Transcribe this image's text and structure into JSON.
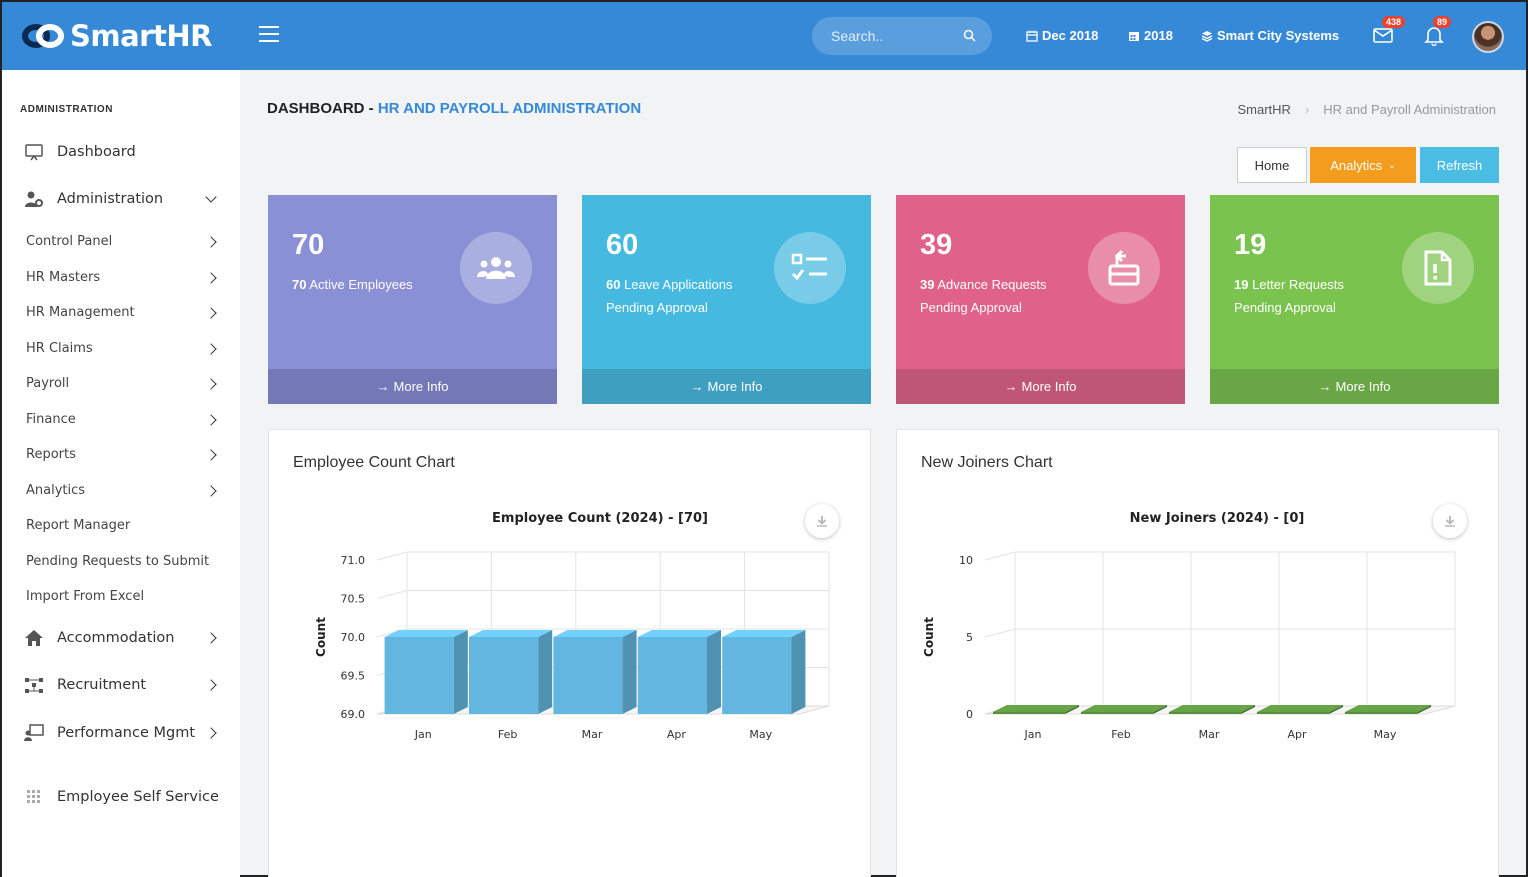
{
  "app": {
    "logo": "SmartHR"
  },
  "header": {
    "search_placeholder": "Search..",
    "month": "Dec 2018",
    "year": "2018",
    "company": "Smart City Systems",
    "mail_count": "438",
    "notif_count": "89"
  },
  "sidebar": {
    "section": "ADMINISTRATION",
    "main_items": [
      {
        "label": "Dashboard",
        "icon": "monitor-icon"
      },
      {
        "label": "Administration",
        "icon": "user-gear-icon"
      }
    ],
    "sub_items": [
      {
        "label": "Control Panel"
      },
      {
        "label": "HR Masters"
      },
      {
        "label": "HR Management"
      },
      {
        "label": "HR Claims"
      },
      {
        "label": "Payroll"
      },
      {
        "label": "Finance"
      },
      {
        "label": "Reports"
      },
      {
        "label": "Analytics"
      },
      {
        "label": "Report Manager"
      },
      {
        "label": "Pending Requests to Submit"
      },
      {
        "label": "Import From Excel"
      }
    ],
    "lower_items": [
      {
        "label": "Accommodation",
        "icon": "home-icon"
      },
      {
        "label": "Recruitment",
        "icon": "network-icon"
      },
      {
        "label": "Performance Mgmt",
        "icon": "presentation-icon"
      },
      {
        "label": "Employee Self Service",
        "icon": "grid-icon"
      }
    ]
  },
  "page": {
    "title_prefix": "DASHBOARD - ",
    "title_accent": "HR AND PAYROLL ADMINISTRATION",
    "breadcrumb": [
      "SmartHR",
      "HR and Payroll Administration"
    ],
    "buttons": {
      "home": "Home",
      "analytics": "Analytics",
      "refresh": "Refresh"
    }
  },
  "cards": [
    {
      "value": "70",
      "bold": "70",
      "text": " Active Employees",
      "line2": "",
      "color": "#8a90d6",
      "foot_color": "#7379b6",
      "icon": "users-icon",
      "more": "More Info"
    },
    {
      "value": "60",
      "bold": "60",
      "text": " Leave Applications",
      "line2": "Pending Approval",
      "color": "#45b9e0",
      "foot_color": "#3e9fc0",
      "icon": "checklist-icon",
      "more": "More Info"
    },
    {
      "value": "39",
      "bold": "39",
      "text": " Advance Requests",
      "line2": "Pending Approval",
      "color": "#e0628a",
      "foot_color": "#bf5678",
      "icon": "wallet-icon",
      "more": "More Info"
    },
    {
      "value": "19",
      "bold": "19",
      "text": " Letter Requests",
      "line2": "Pending Approval",
      "color": "#7bc34f",
      "foot_color": "#69a646",
      "icon": "file-alert-icon",
      "more": "More Info"
    }
  ],
  "panels": {
    "left": {
      "title": "Employee Count Chart"
    },
    "right": {
      "title": "New Joiners Chart"
    }
  },
  "chart_data": [
    {
      "type": "bar",
      "title": "Employee Count (2024) - [70]",
      "xlabel": "",
      "ylabel": "Count",
      "categories": [
        "Jan",
        "Feb",
        "Mar",
        "Apr",
        "May"
      ],
      "values": [
        70,
        70,
        70,
        70,
        70
      ],
      "ylim": [
        69.0,
        71.0
      ],
      "yticks": [
        "69.0",
        "69.5",
        "70.0",
        "70.5",
        "71.0"
      ],
      "color": "#63b6df",
      "grid": true
    },
    {
      "type": "bar",
      "title": "New Joiners (2024) - [0]",
      "xlabel": "",
      "ylabel": "Count",
      "categories": [
        "Jan",
        "Feb",
        "Mar",
        "Apr",
        "May"
      ],
      "values": [
        0,
        0,
        0,
        0,
        0
      ],
      "ylim": [
        0,
        10
      ],
      "yticks": [
        "0",
        "5",
        "10"
      ],
      "color": "#5a8f3e",
      "grid": true
    }
  ]
}
